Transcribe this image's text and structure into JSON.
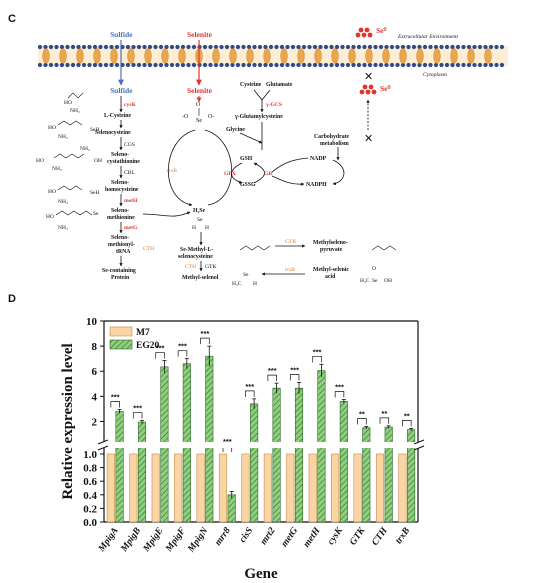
{
  "panel_c": {
    "label": "C",
    "env_top": "Extracellular Environment",
    "env_bottom": "Cytoplasm",
    "sulfide_top": "Sulfide",
    "selenite_top": "Selenite",
    "sulfide_in": "Sulfide",
    "selenite_in": "Selenite",
    "se0_a": "Se⁰",
    "se0_b": "Se⁰",
    "l_cysteine": "L-Cysteine",
    "selenocysteine": "Selenocysteine",
    "selenocystathionine": [
      "Seleno-",
      "cystathionine"
    ],
    "selenohomocysteine": [
      "Seleno-",
      "homocysteine"
    ],
    "selenomethionine": [
      "Seleno-",
      "methionine"
    ],
    "selenomethionyl_trna": [
      "Seleno-",
      "methionyl-",
      "tRNA"
    ],
    "se_protein": [
      "Se-containing",
      "Protein"
    ],
    "cysteine": "Cysteine",
    "glutamate": "Glutamate",
    "gglu": "γ-Glutamylcysteine",
    "glycine": "Glycine",
    "gsh": "GSH",
    "gssg": "GSSG",
    "nadp": "NADP",
    "nadph": "NADPH",
    "carb": [
      "Carbohydrate",
      "metabolism"
    ],
    "h2se": "H₂Se",
    "se_methyl": [
      "Se-Methyl-L-",
      "selenocysteine"
    ],
    "methylselenol": "Methyl-selenol",
    "msp": [
      "Methylseleno-",
      "pyruvate"
    ],
    "msa": [
      "Methyl-selenic",
      "acid"
    ],
    "enzymes": {
      "cysK": "cysK",
      "CGS": "CGS",
      "CBL": "CBL",
      "metH": "metH",
      "metG": "metG",
      "gGCS": "γ-GCS",
      "GPX": "GPX",
      "GR": "GR",
      "trxB": "trxB",
      "CTH_a": "CTH",
      "CTH_b": "CTH",
      "GTK_a": "GTK",
      "GTK_b": "GTK",
      "trxB_b": "trxB"
    }
  },
  "panel_d": {
    "label": "D",
    "legend": [
      "M7",
      "EG20"
    ]
  },
  "chart_data": {
    "type": "bar",
    "ylabel": "Relative expression level",
    "xlabel": "Gene",
    "categories": [
      "MpigA",
      "MpigB",
      "MpigE",
      "MpigF",
      "MpigN",
      "mrr8",
      "cisS",
      "mrt2",
      "metG",
      "metH",
      "cysK",
      "GTK",
      "CTH",
      "trxB"
    ],
    "series": [
      {
        "name": "M7",
        "values": [
          1,
          1,
          1,
          1,
          1,
          1,
          1,
          1,
          1,
          1,
          1,
          1,
          1,
          1
        ]
      },
      {
        "name": "EG20",
        "values": [
          2.8,
          1.95,
          6.35,
          6.6,
          7.2,
          0.4,
          3.4,
          4.65,
          4.65,
          6.05,
          3.6,
          1.5,
          1.55,
          1.35
        ]
      }
    ],
    "errors": [
      0.15,
      0.12,
      0.5,
      0.4,
      0.8,
      0.05,
      0.4,
      0.4,
      0.45,
      0.5,
      0.15,
      0.1,
      0.1,
      0.1
    ],
    "significance": [
      "***",
      "***",
      "***",
      "***",
      "***",
      "***",
      "***",
      "***",
      "***",
      "***",
      "***",
      "**",
      "**",
      "**"
    ],
    "yticks_upper": [
      2,
      4,
      6,
      8,
      10
    ],
    "yticks_lower": [
      "0.0",
      "0.2",
      "0.4",
      "0.6",
      "0.8",
      "1.0"
    ],
    "axis_break": true,
    "legend_position": "top-left",
    "colors": {
      "M7": "#fbd4a3",
      "EG20": "#8fcf7f"
    }
  }
}
